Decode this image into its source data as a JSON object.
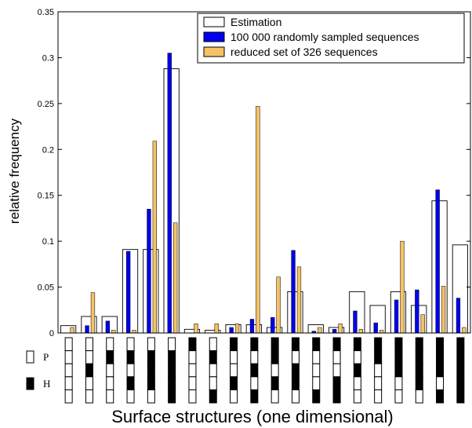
{
  "chart_data": {
    "type": "bar",
    "title": "",
    "xlabel": "Surface structures (one dimensional)",
    "ylabel": "relative frequency",
    "ylim": [
      0,
      0.35
    ],
    "yticks": [
      "0",
      "0.05",
      "0.1",
      "0.15",
      "0.2",
      "0.25",
      "0.3",
      "0.35"
    ],
    "ytick_values": [
      0,
      0.05,
      0.1,
      0.15,
      0.2,
      0.25,
      0.3,
      0.35
    ],
    "grid": false,
    "legend_position": "top-right",
    "n_categories": 20,
    "series": [
      {
        "name": "Estimation",
        "style": "outline",
        "color": "#ffffff",
        "values": [
          0.008,
          0.018,
          0.018,
          0.091,
          0.091,
          0.288,
          0.004,
          0.003,
          0.009,
          0.009,
          0.006,
          0.045,
          0.009,
          0.006,
          0.045,
          0.03,
          0.045,
          0.03,
          0.144,
          0.096
        ]
      },
      {
        "name": "100 000 randomly sampled sequences",
        "style": "fill",
        "color": "#0000ee",
        "values": [
          0.0,
          0.008,
          0.013,
          0.089,
          0.135,
          0.305,
          0.0,
          0.0,
          0.006,
          0.015,
          0.017,
          0.09,
          0.002,
          0.004,
          0.024,
          0.011,
          0.036,
          0.047,
          0.156,
          0.038
        ]
      },
      {
        "name": "reduced set of 326 sequences",
        "style": "fill",
        "color": "#f5c266",
        "values": [
          0.006,
          0.044,
          0.003,
          0.003,
          0.209,
          0.12,
          0.01,
          0.01,
          0.01,
          0.247,
          0.061,
          0.072,
          0.006,
          0.01,
          0.004,
          0.003,
          0.1,
          0.02,
          0.051,
          0.006
        ]
      }
    ],
    "structure_key": {
      "labels": [
        "P",
        "H"
      ],
      "sequences": [
        "PPPPP",
        "PPHPP",
        "PHPPP",
        "PHPHP",
        "PHHHP",
        "PHHHH",
        "HPPPP",
        "PHPPH",
        "HPPHP",
        "HPHPH",
        "HHPHP",
        "HPHHP",
        "HPPPH",
        "HPPHH",
        "HPHPP",
        "HHPPP",
        "HHHPP",
        "HHHHP",
        "HHHPH",
        "HHHHH"
      ]
    }
  }
}
